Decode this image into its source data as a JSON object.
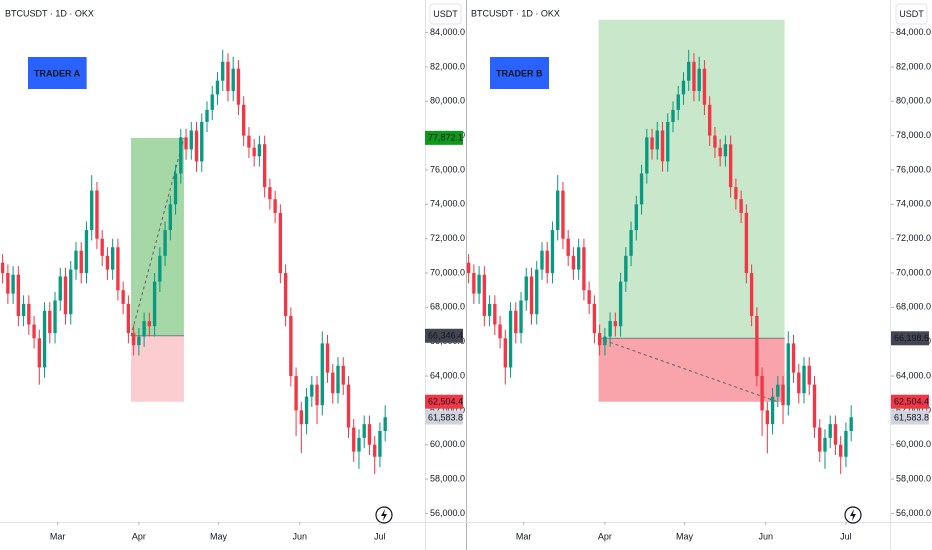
{
  "chart_data": [
    {
      "type": "candlestick",
      "title": "BTCUSDT · 1D · OKX",
      "unit": "USDT",
      "annotation": "TRADER A",
      "up_color": "#089981",
      "down_color": "#f23645",
      "annotation_color": "#2962ff",
      "ylim": [
        55500,
        85900
      ],
      "xlim": [
        -0.5,
        80.6
      ],
      "yticks": [
        {
          "value": 56000,
          "label": "56,000.0"
        },
        {
          "value": 58000,
          "label": "58,000.0"
        },
        {
          "value": 60000,
          "label": "60,000.0"
        },
        {
          "value": 62000,
          "label": "62,000.0"
        },
        {
          "value": 64000,
          "label": "64,000.0"
        },
        {
          "value": 66000,
          "label": "66,000.0"
        },
        {
          "value": 68000,
          "label": "68,000.0"
        },
        {
          "value": 70000,
          "label": "70,000.0"
        },
        {
          "value": 72000,
          "label": "72,000.0"
        },
        {
          "value": 74000,
          "label": "74,000.0"
        },
        {
          "value": 76000,
          "label": "76,000.0"
        },
        {
          "value": 78000,
          "label": "78,000.0"
        },
        {
          "value": 80000,
          "label": "80,000.0"
        },
        {
          "value": 82000,
          "label": "82,000.0"
        },
        {
          "value": 84000,
          "label": "84,000.0"
        }
      ],
      "xticks": [
        {
          "value": 10.5,
          "label": "Mar"
        },
        {
          "value": 26,
          "label": "Apr"
        },
        {
          "value": 41.2,
          "label": "May"
        },
        {
          "value": 56.7,
          "label": "Jun"
        },
        {
          "value": 72,
          "label": "Jul"
        }
      ],
      "open": [
        70600,
        70000,
        68800,
        69900,
        67500,
        68200,
        67000,
        66200,
        64500,
        67800,
        66500,
        68400,
        69800,
        67600,
        70200,
        71300,
        70000,
        72500,
        74800,
        72000,
        71000,
        70200,
        71500,
        69000,
        68200,
        66500,
        65800,
        66300,
        67200,
        66900,
        69500,
        71000,
        72500,
        74000,
        75800,
        77900,
        77200,
        78300,
        76500,
        78800,
        79500,
        80400,
        81200,
        82300,
        80600,
        81900,
        79800,
        78000,
        77300,
        76800,
        77500,
        75000,
        74300,
        73500,
        70000,
        67500,
        64000,
        62000,
        61200,
        62800,
        63500,
        62300,
        65900,
        64200,
        63000,
        64600,
        63500,
        61000,
        59600,
        60400,
        61200,
        60000,
        59300,
        60800
      ],
      "high": [
        71100,
        70500,
        70400,
        70400,
        68700,
        68700,
        67500,
        66700,
        68300,
        68300,
        68900,
        70300,
        70300,
        70700,
        71800,
        71800,
        73000,
        75700,
        75300,
        72500,
        71500,
        72000,
        72000,
        69500,
        68700,
        67000,
        66800,
        67700,
        67700,
        70000,
        71500,
        73000,
        74500,
        76300,
        78400,
        78400,
        78800,
        78800,
        79300,
        80000,
        80900,
        81700,
        83000,
        82800,
        82600,
        82400,
        80300,
        78500,
        77800,
        78000,
        78000,
        75500,
        74800,
        74000,
        70500,
        68000,
        64500,
        62500,
        63300,
        64000,
        64000,
        66600,
        66400,
        64700,
        65100,
        65100,
        64000,
        61500,
        60900,
        61700,
        61700,
        60500,
        61300,
        62300
      ],
      "low": [
        69400,
        68200,
        68200,
        66900,
        66900,
        66400,
        65600,
        63500,
        63900,
        65900,
        65900,
        67800,
        67000,
        67000,
        69600,
        69400,
        69400,
        71900,
        71400,
        70400,
        69600,
        69600,
        68400,
        67600,
        65900,
        65200,
        65200,
        65700,
        66300,
        66300,
        68900,
        70400,
        71900,
        73400,
        75200,
        76600,
        76600,
        75900,
        75900,
        78200,
        78900,
        79800,
        80600,
        80000,
        80000,
        79200,
        77400,
        76700,
        76200,
        76200,
        74400,
        73700,
        72900,
        69400,
        66900,
        63400,
        60500,
        59500,
        60600,
        62200,
        61200,
        61700,
        63600,
        62400,
        62400,
        62900,
        60400,
        59000,
        58600,
        59800,
        59400,
        58300,
        58700,
        60200
      ],
      "close": [
        70000,
        68800,
        69900,
        67500,
        68200,
        67000,
        66200,
        64500,
        67800,
        66500,
        68400,
        69800,
        67600,
        70200,
        71300,
        70000,
        72500,
        74800,
        72000,
        71000,
        70200,
        71500,
        69000,
        68200,
        66500,
        65800,
        66300,
        67200,
        66900,
        69500,
        71000,
        72500,
        74000,
        75800,
        77900,
        77200,
        78300,
        76500,
        78800,
        79500,
        80400,
        81200,
        82300,
        80600,
        81900,
        79800,
        78000,
        77300,
        76800,
        77500,
        75000,
        74300,
        73500,
        70000,
        67500,
        64000,
        62000,
        61200,
        62800,
        63500,
        62300,
        65900,
        64200,
        63000,
        64600,
        63500,
        61000,
        59600,
        60400,
        61200,
        60000,
        59300,
        60800,
        61600
      ],
      "position": {
        "start": 24.5,
        "end": 34.6,
        "entry": 66346.4,
        "target": 77872.1,
        "stop": 62504.4,
        "outcome": "target",
        "outcome_at": 34.6,
        "target_color": "rgba(76,175,80,0.5)",
        "stop_color": "rgba(242,54,69,0.25)"
      },
      "price_labels": [
        {
          "value": 77872.1,
          "label": "77,872.1",
          "color": "#0c9a1c",
          "text_color": "#ffffff"
        },
        {
          "value": 66346.4,
          "label": "66,346.4",
          "color": "#434651",
          "text_color": "#ffffff"
        },
        {
          "value": 62504.4,
          "label": "62,504.4",
          "color": "#f23645",
          "text_color": "#ffffff"
        },
        {
          "value": 61583.8,
          "label": "61,583.8",
          "color": "#d1d4dc",
          "text_color": "#131722"
        }
      ]
    },
    {
      "type": "candlestick",
      "title": "BTCUSDT · 1D · OKX",
      "unit": "USDT",
      "annotation": "TRADER B",
      "up_color": "#089981",
      "down_color": "#f23645",
      "annotation_color": "#2962ff",
      "ylim": [
        55500,
        85900
      ],
      "xlim": [
        -0.5,
        80.6
      ],
      "yticks": [
        {
          "value": 56000,
          "label": "56,000.0"
        },
        {
          "value": 58000,
          "label": "58,000.0"
        },
        {
          "value": 60000,
          "label": "60,000.0"
        },
        {
          "value": 62000,
          "label": "62,000.0"
        },
        {
          "value": 64000,
          "label": "64,000.0"
        },
        {
          "value": 66000,
          "label": "66,000.0"
        },
        {
          "value": 68000,
          "label": "68,000.0"
        },
        {
          "value": 70000,
          "label": "70,000.0"
        },
        {
          "value": 72000,
          "label": "72,000.0"
        },
        {
          "value": 74000,
          "label": "74,000.0"
        },
        {
          "value": 76000,
          "label": "76,000.0"
        },
        {
          "value": 78000,
          "label": "78,000.0"
        },
        {
          "value": 80000,
          "label": "80,000.0"
        },
        {
          "value": 82000,
          "label": "82,000.0"
        },
        {
          "value": 84000,
          "label": "84,000.0"
        }
      ],
      "xticks": [
        {
          "value": 10.5,
          "label": "Mar"
        },
        {
          "value": 26,
          "label": "Apr"
        },
        {
          "value": 41.2,
          "label": "May"
        },
        {
          "value": 56.7,
          "label": "Jun"
        },
        {
          "value": 72,
          "label": "Jul"
        }
      ],
      "position": {
        "start": 24.8,
        "end": 60.3,
        "entry": 66198.6,
        "target": 84750,
        "stop": 62504.4,
        "outcome": "stop",
        "outcome_at": 58.9,
        "target_color": "rgba(76,175,80,0.3)",
        "stop_color": "rgba(242,54,69,0.45)"
      },
      "price_labels": [
        {
          "value": 66198.6,
          "label": "66,198.6",
          "color": "#434651",
          "text_color": "#ffffff"
        },
        {
          "value": 62504.4,
          "label": "62,504.4",
          "color": "#f23645",
          "text_color": "#ffffff"
        },
        {
          "value": 61583.8,
          "label": "61,583.8",
          "color": "#d1d4dc",
          "text_color": "#131722"
        }
      ]
    }
  ]
}
